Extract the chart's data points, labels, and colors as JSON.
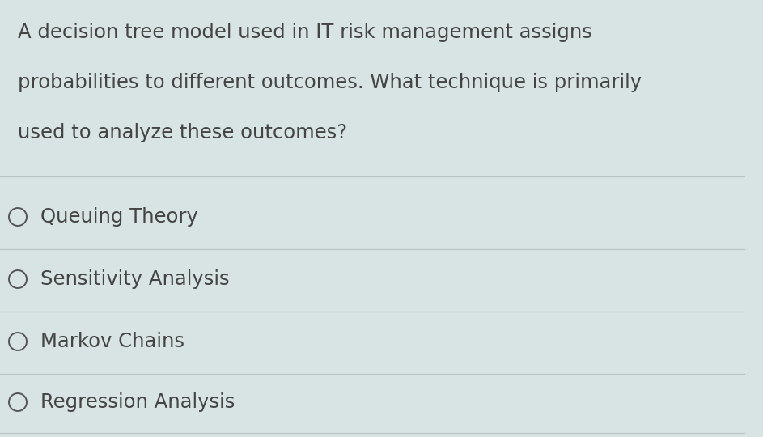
{
  "background_color": "#d8e4e4",
  "question_lines": [
    "A decision tree model used in IT risk management assigns",
    "probabilities to different outcomes. What technique is primarily",
    "used to analyze these outcomes?"
  ],
  "options": [
    "Queuing Theory",
    "Sensitivity Analysis",
    "Markov Chains",
    "Regression Analysis"
  ],
  "question_fontsize": 17.5,
  "option_fontsize": 17.5,
  "text_color": "#444444",
  "line_color": "#b8c4c4",
  "circle_color": "#555555",
  "fig_width": 9.43,
  "fig_height": 5.4
}
